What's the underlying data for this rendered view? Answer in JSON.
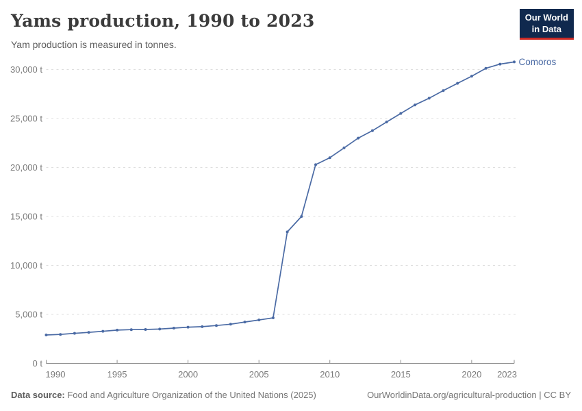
{
  "header": {
    "title": "Yams production, 1990 to 2023",
    "subtitle": "Yam production is measured in tonnes.",
    "logo": {
      "line1": "Our World",
      "line2": "in Data"
    }
  },
  "colors": {
    "line": "#4a6aa4",
    "series_label": "#4a6aa4",
    "logo_bg": "#10294e",
    "logo_accent": "#cc2a24",
    "grid": "#dedede",
    "axis": "#8f8f8f",
    "tick_text": "#7a7a7a",
    "title_text": "#3b3b3b"
  },
  "chart_data": {
    "type": "line",
    "title": "Yams production, 1990 to 2023",
    "subtitle": "Yam production is measured in tonnes.",
    "unit": "t",
    "xlabel": "",
    "ylabel": "",
    "xlim": [
      1990,
      2023
    ],
    "ylim": [
      0,
      31000
    ],
    "grid": "horizontal-dashed",
    "legend_position": "end-of-line-label",
    "end_label": "Comoros",
    "x_ticks": [
      1990,
      1995,
      2000,
      2005,
      2010,
      2015,
      2020,
      2023
    ],
    "x_tick_labels": [
      "1990",
      "1995",
      "2000",
      "2005",
      "2010",
      "2015",
      "2020",
      "2023"
    ],
    "y_ticks": [
      0,
      5000,
      10000,
      15000,
      20000,
      25000,
      30000
    ],
    "y_tick_labels": [
      "0 t",
      "5,000 t",
      "10,000 t",
      "15,000 t",
      "20,000 t",
      "25,000 t",
      "30,000 t"
    ],
    "series": [
      {
        "name": "Comoros",
        "x": [
          1990,
          1991,
          1992,
          1993,
          1994,
          1995,
          1996,
          1997,
          1998,
          1999,
          2000,
          2001,
          2002,
          2003,
          2004,
          2005,
          2006,
          2007,
          2008,
          2009,
          2010,
          2011,
          2012,
          2013,
          2014,
          2015,
          2016,
          2017,
          2018,
          2019,
          2020,
          2021,
          2022,
          2023
        ],
        "values": [
          2900,
          2957,
          3070,
          3167,
          3283,
          3400,
          3450,
          3460,
          3500,
          3600,
          3700,
          3750,
          3868,
          4000,
          4227,
          4434,
          4651,
          13430,
          15000,
          20286,
          21000,
          22000,
          23000,
          23757,
          24640,
          25519,
          26382,
          27068,
          27843,
          28594,
          29319,
          30123,
          30551,
          30773
        ]
      }
    ]
  },
  "footer": {
    "source_label": "Data source:",
    "source_text": " Food and Agriculture Organization of the United Nations (2025)",
    "link": "OurWorldinData.org/agricultural-production | CC BY"
  }
}
